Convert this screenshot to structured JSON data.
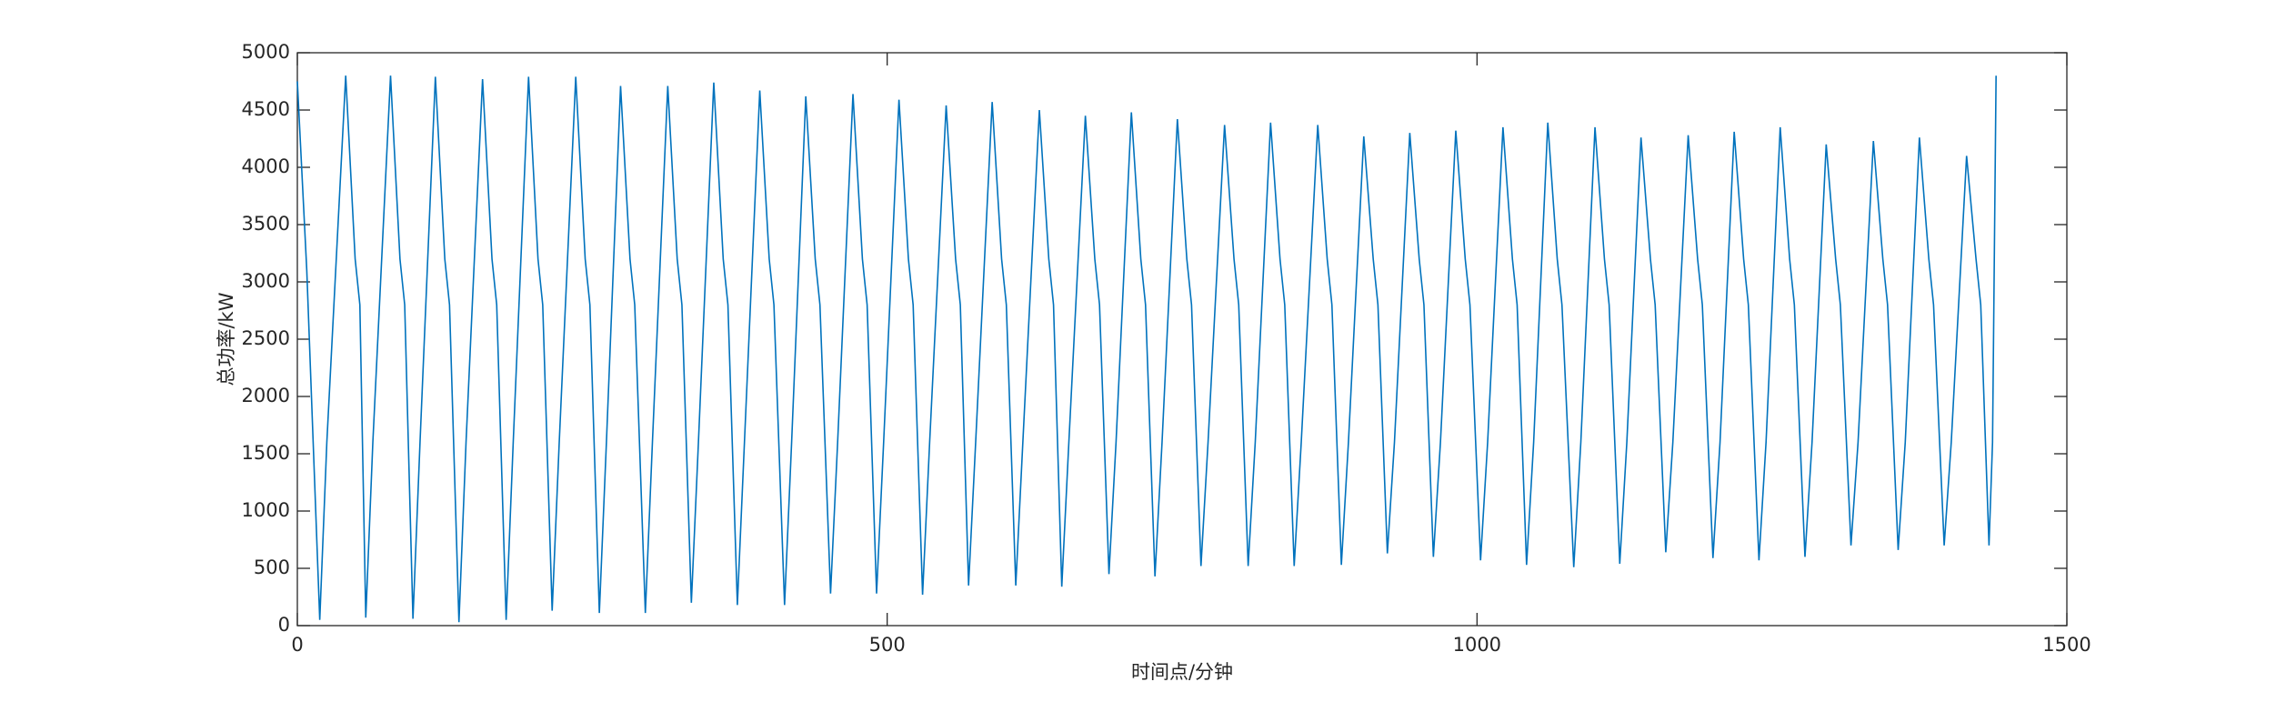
{
  "chart_data": {
    "type": "line",
    "xlabel": "时间点/分钟",
    "ylabel": "总功率/kW",
    "xlim": [
      0,
      1500
    ],
    "ylim": [
      0,
      5000
    ],
    "xticks": [
      0,
      500,
      1000,
      1500
    ],
    "yticks": [
      0,
      500,
      1000,
      1500,
      2000,
      2500,
      3000,
      3500,
      4000,
      4500,
      5000
    ],
    "color": "#0072bd",
    "x": [
      0,
      8,
      19,
      25,
      41,
      49,
      53,
      58,
      64,
      79,
      87,
      91,
      98,
      104,
      117,
      125,
      129,
      137,
      143,
      157,
      165,
      169,
      177,
      183,
      196,
      204,
      208,
      216,
      222,
      236,
      244,
      248,
      256,
      262,
      274,
      282,
      286,
      295,
      301,
      314,
      322,
      326,
      334,
      340,
      353,
      361,
      365,
      373,
      379,
      392,
      400,
      404,
      413,
      419,
      431,
      439,
      443,
      452,
      458,
      471,
      479,
      483,
      491,
      497,
      510,
      518,
      522,
      530,
      536,
      550,
      558,
      562,
      569,
      575,
      589,
      597,
      601,
      609,
      615,
      629,
      637,
      641,
      648,
      654,
      668,
      676,
      680,
      688,
      694,
      707,
      715,
      719,
      727,
      733,
      746,
      754,
      758,
      766,
      772,
      786,
      794,
      798,
      806,
      812,
      825,
      833,
      837,
      845,
      851,
      865,
      873,
      877,
      885,
      891,
      904,
      912,
      916,
      924,
      930,
      943,
      951,
      955,
      963,
      969,
      982,
      990,
      994,
      1003,
      1009,
      1022,
      1030,
      1034,
      1042,
      1048,
      1060,
      1068,
      1072,
      1082,
      1088,
      1100,
      1108,
      1112,
      1121,
      1127,
      1139,
      1147,
      1151,
      1160,
      1166,
      1179,
      1187,
      1191,
      1200,
      1206,
      1218,
      1226,
      1230,
      1239,
      1245,
      1257,
      1265,
      1269,
      1278,
      1284,
      1296,
      1304,
      1308,
      1317,
      1323,
      1336,
      1344,
      1348,
      1357,
      1363,
      1375,
      1383,
      1387,
      1396,
      1402,
      1415,
      1423,
      1427,
      1434,
      1437,
      1440
    ],
    "values": [
      4750,
      3100,
      50,
      1600,
      4800,
      3200,
      2800,
      70,
      1600,
      4800,
      3200,
      2800,
      60,
      1600,
      4790,
      3200,
      2800,
      30,
      1600,
      4770,
      3200,
      2800,
      50,
      1600,
      4790,
      3200,
      2800,
      130,
      1600,
      4790,
      3200,
      2800,
      110,
      1600,
      4710,
      3200,
      2800,
      110,
      1600,
      4710,
      3200,
      2800,
      200,
      1600,
      4740,
      3200,
      2800,
      180,
      1600,
      4670,
      3200,
      2800,
      180,
      1600,
      4620,
      3200,
      2800,
      280,
      1600,
      4640,
      3200,
      2800,
      280,
      1600,
      4590,
      3200,
      2800,
      270,
      1600,
      4540,
      3200,
      2800,
      350,
      1600,
      4570,
      3200,
      2800,
      350,
      1600,
      4500,
      3200,
      2800,
      340,
      1600,
      4450,
      3200,
      2800,
      450,
      1600,
      4480,
      3200,
      2800,
      430,
      1600,
      4420,
      3200,
      2800,
      520,
      1600,
      4370,
      3200,
      2800,
      520,
      1600,
      4390,
      3200,
      2800,
      520,
      1600,
      4370,
      3200,
      2800,
      530,
      1600,
      4270,
      3200,
      2800,
      630,
      1600,
      4300,
      3200,
      2800,
      600,
      1600,
      4320,
      3200,
      2800,
      570,
      1600,
      4350,
      3200,
      2800,
      530,
      1600,
      4390,
      3200,
      2800,
      510,
      1600,
      4350,
      3200,
      2800,
      540,
      1600,
      4260,
      3200,
      2800,
      640,
      1600,
      4280,
      3200,
      2800,
      590,
      1600,
      4310,
      3200,
      2800,
      570,
      1600,
      4350,
      3200,
      2800,
      600,
      1600,
      4200,
      3200,
      2800,
      700,
      1600,
      4230,
      3200,
      2800,
      660,
      1600,
      4260,
      3200,
      2800,
      700,
      1600,
      4100,
      3200,
      2800,
      700,
      1600,
      4800
    ]
  }
}
